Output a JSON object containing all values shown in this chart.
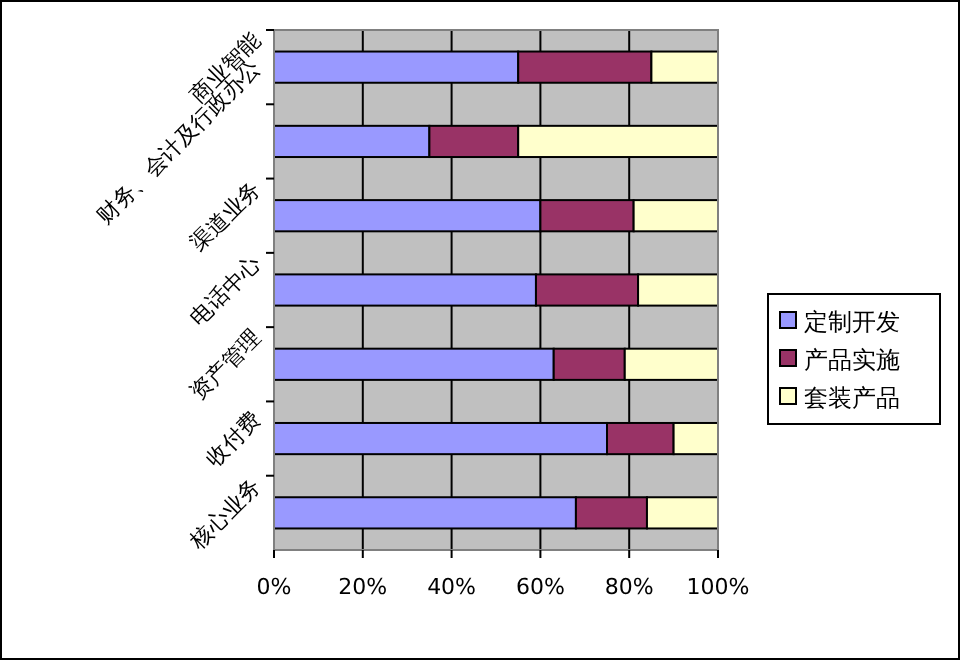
{
  "chart_data": {
    "type": "bar",
    "orientation": "horizontal",
    "stacked": true,
    "categories": [
      "商业智能",
      "财务、会计及行政办公",
      "渠道业务",
      "电话中心",
      "资产管理",
      "收付费",
      "核心业务"
    ],
    "series": [
      {
        "name": "定制开发",
        "color": "#9999ff",
        "values": [
          55,
          35,
          60,
          59,
          63,
          75,
          68
        ]
      },
      {
        "name": "产品实施",
        "color": "#993366",
        "values": [
          30,
          20,
          21,
          23,
          16,
          15,
          16
        ]
      },
      {
        "name": "套装产品",
        "color": "#ffffcc",
        "values": [
          15,
          45,
          19,
          18,
          21,
          10,
          16
        ]
      }
    ],
    "xlim": [
      0,
      100
    ],
    "xticks": [
      {
        "value": 0,
        "label": "0%"
      },
      {
        "value": 20,
        "label": "20%"
      },
      {
        "value": 40,
        "label": "40%"
      },
      {
        "value": 60,
        "label": "60%"
      },
      {
        "value": 80,
        "label": "80%"
      },
      {
        "value": 100,
        "label": "100%"
      }
    ],
    "grid": "x",
    "legend": "right"
  }
}
